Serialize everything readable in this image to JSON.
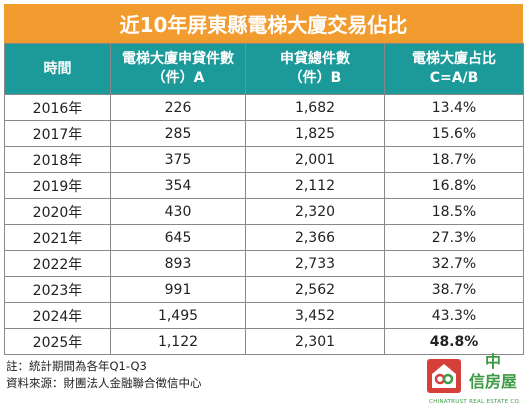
{
  "title": "近10年屏東縣電梯大廈交易佔比",
  "table": {
    "headers": [
      {
        "line1": "時間",
        "line2": ""
      },
      {
        "line1": "電梯大廈申貸件數",
        "line2": "（件）A"
      },
      {
        "line1": "申貸總件數",
        "line2": "（件）B"
      },
      {
        "line1": "電梯大廈占比",
        "line2": "C=A/B"
      }
    ],
    "rows": [
      {
        "year": "2016年",
        "a": "226",
        "b": "1,682",
        "c": "13.4%"
      },
      {
        "year": "2017年",
        "a": "285",
        "b": "1,825",
        "c": "15.6%"
      },
      {
        "year": "2018年",
        "a": "375",
        "b": "2,001",
        "c": "18.7%"
      },
      {
        "year": "2019年",
        "a": "354",
        "b": "2,112",
        "c": "16.8%"
      },
      {
        "year": "2020年",
        "a": "430",
        "b": "2,320",
        "c": "18.5%"
      },
      {
        "year": "2021年",
        "a": "645",
        "b": "2,366",
        "c": "27.3%"
      },
      {
        "year": "2022年",
        "a": "893",
        "b": "2,733",
        "c": "32.7%"
      },
      {
        "year": "2023年",
        "a": "991",
        "b": "2,562",
        "c": "38.7%"
      },
      {
        "year": "2024年",
        "a": "1,495",
        "b": "3,452",
        "c": "43.3%"
      },
      {
        "year": "2025年",
        "a": "1,122",
        "b": "2,301",
        "c": "48.8%"
      }
    ]
  },
  "notes": {
    "note": "註：統計期間為各年Q1-Q3",
    "source": "資料來源：財團法人金融聯合徵信中心"
  },
  "logo": {
    "name": "中信房屋",
    "name_line1": "中",
    "name_line2": "信房屋",
    "subtitle": "CHINATRUST REAL ESTATE CO."
  },
  "colors": {
    "title_bg": "#f29b2f",
    "header_bg": "#1c9a9a",
    "highlight": "#d32f2f",
    "logo_green": "#3d9a45",
    "logo_red": "#d6403a"
  }
}
